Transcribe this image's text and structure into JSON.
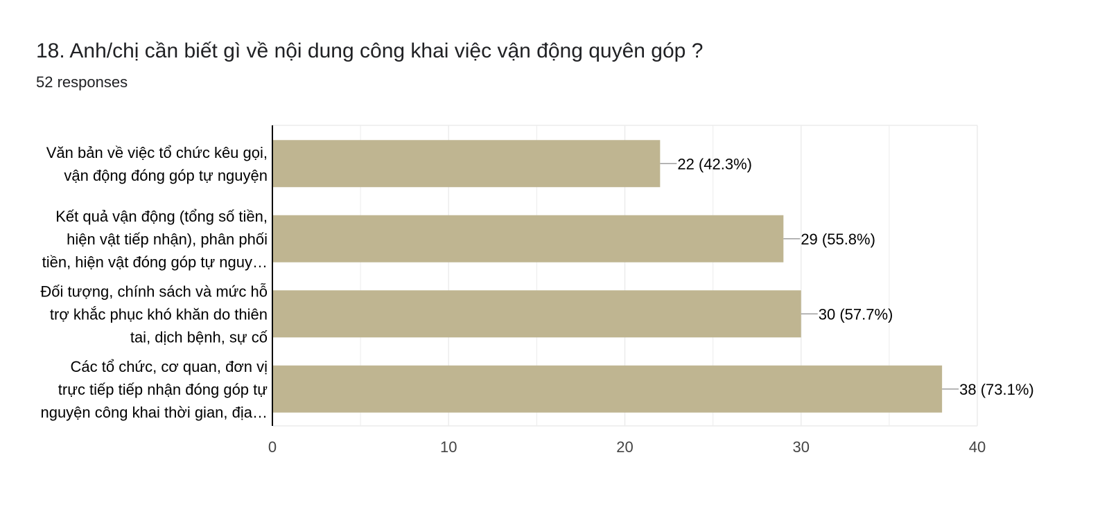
{
  "question": {
    "title": "18. Anh/chị cần biết gì về nội dung công khai việc vận động quyên góp ?",
    "responses": "52 responses"
  },
  "colors": {
    "bar": "#bfb591",
    "grid": "#ececec",
    "axis": "#000000",
    "text": "#202124",
    "tick_text": "#444444",
    "leader": "#9e9e9e"
  },
  "chart_data": {
    "type": "bar",
    "orientation": "horizontal",
    "categories": [
      [
        "Văn bản về việc tổ chức kêu gọi,",
        "vận động đóng góp tự nguyện"
      ],
      [
        "Kết quả vận động (tổng số tiền,",
        "hiện vật tiếp nhận), phân phối",
        "tiền, hiện vật đóng góp tự nguy…"
      ],
      [
        "Đối tượng, chính sách và mức hỗ",
        "trợ khắc phục khó khăn do thiên",
        "tai, dịch bệnh, sự cố"
      ],
      [
        "Các tổ chức, cơ quan, đơn vị",
        "trực tiếp tiếp nhận đóng góp tự",
        "nguyện công khai thời gian, địa…"
      ]
    ],
    "values": [
      22,
      29,
      30,
      38
    ],
    "data_labels": [
      "22 (42.3%)",
      "29 (55.8%)",
      "30 (57.7%)",
      "38 (73.1%)"
    ],
    "xlim": [
      0,
      40
    ],
    "xticks": [
      0,
      10,
      20,
      30,
      40
    ],
    "grid": true
  }
}
